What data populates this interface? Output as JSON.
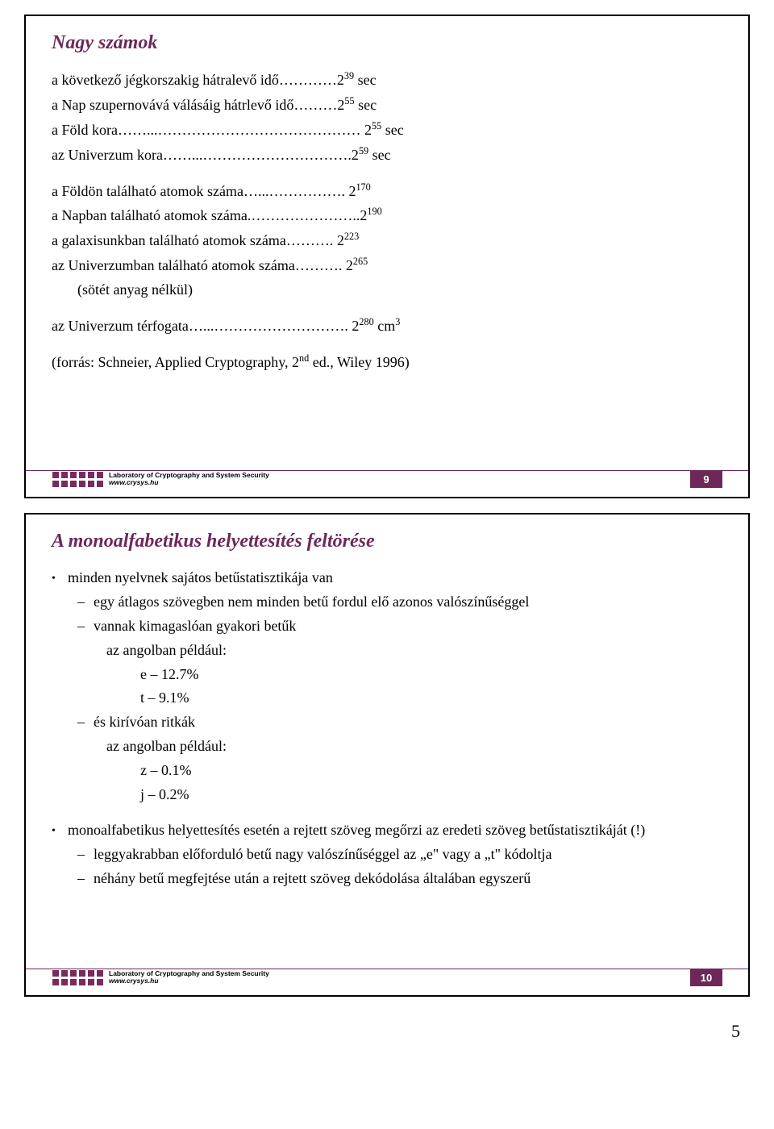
{
  "slide1": {
    "title": "Nagy számok",
    "lines": [
      {
        "t": "a következő jégkorszakig hátralevő idő…………2|39| sec",
        "cls": ""
      },
      {
        "t": "a Nap szupernovává válásáig hátrlevő idő………2|55| sec",
        "cls": ""
      },
      {
        "t": "a Föld kora……...…………………………………… 2|55| sec",
        "cls": ""
      },
      {
        "t": "az Univerzum kora……...………………………….2|59| sec",
        "cls": ""
      },
      {
        "t": "",
        "cls": "spacer"
      },
      {
        "t": "a Földön található atomok száma…...……………. 2|170|",
        "cls": ""
      },
      {
        "t": "a Napban található atomok száma.…………………..2|190|",
        "cls": ""
      },
      {
        "t": "a galaxisunkban található atomok száma………. 2|223|",
        "cls": ""
      },
      {
        "t": "az Univerzumban található atomok száma………. 2|265|",
        "cls": ""
      },
      {
        "t": "(sötét anyag nélkül)",
        "cls": "indent1"
      },
      {
        "t": "",
        "cls": "spacer"
      },
      {
        "t": "az Univerzum térfogata…...………………………. 2|280| cm^3",
        "cls": ""
      },
      {
        "t": "",
        "cls": "spacer"
      },
      {
        "t": "(forrás: Schneier, Applied Cryptography, 2^nd ed., Wiley 1996)",
        "cls": ""
      }
    ],
    "number": "9"
  },
  "slide2": {
    "title": "A monoalfabetikus helyettesítés feltörése",
    "bullets": [
      {
        "type": "dot",
        "cls": "",
        "t": "minden nyelvnek sajátos betűstatisztikája van"
      },
      {
        "type": "dash",
        "cls": "indent1",
        "t": "egy átlagos szövegben nem minden betű fordul elő azonos valószínűséggel"
      },
      {
        "type": "dash",
        "cls": "indent1",
        "t": "vannak kimagaslóan gyakori betűk"
      },
      {
        "type": "plain",
        "cls": "indent2",
        "t": "az angolban például:"
      },
      {
        "type": "plain",
        "cls": "indent3",
        "t": "e – 12.7%"
      },
      {
        "type": "plain",
        "cls": "indent3",
        "t": "t – 9.1%"
      },
      {
        "type": "dash",
        "cls": "indent1",
        "t": "és kirívóan ritkák"
      },
      {
        "type": "plain",
        "cls": "indent2",
        "t": "az angolban például:"
      },
      {
        "type": "plain",
        "cls": "indent3",
        "t": "z – 0.1%"
      },
      {
        "type": "plain",
        "cls": "indent3",
        "t": "j – 0.2%"
      },
      {
        "type": "spacer"
      },
      {
        "type": "dot",
        "cls": "",
        "t": "monoalfabetikus helyettesítés esetén a rejtett szöveg megőrzi az eredeti szöveg betűstatisztikáját (!)"
      },
      {
        "type": "dash",
        "cls": "indent1",
        "t": "leggyakrabban előforduló betű nagy valószínűséggel az „e\" vagy a „t\" kódoltja"
      },
      {
        "type": "dash",
        "cls": "indent1",
        "t": "néhány betű megfejtése után a rejtett szöveg dekódolása általában egyszerű"
      }
    ],
    "number": "10"
  },
  "footer": {
    "lab": "Laboratory of Cryptography and System Security",
    "url": "www.crysys.hu"
  },
  "pageNumber": "5",
  "colors": {
    "accent": "#6d285a"
  }
}
